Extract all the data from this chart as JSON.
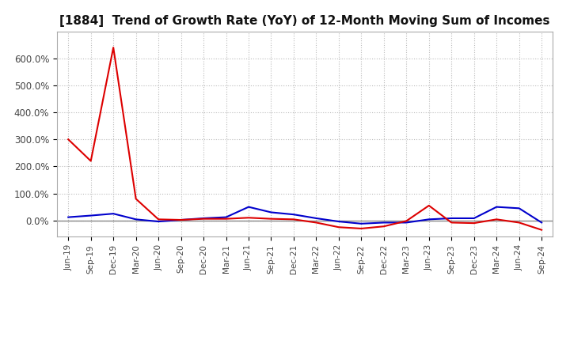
{
  "title": "[1884]  Trend of Growth Rate (YoY) of 12-Month Moving Sum of Incomes",
  "title_fontsize": 11,
  "ylim": [
    -0.6,
    7.0
  ],
  "yticks": [
    0.0,
    1.0,
    2.0,
    3.0,
    4.0,
    5.0,
    6.0
  ],
  "ytick_labels": [
    "0.0%",
    "100.0%",
    "200.0%",
    "300.0%",
    "400.0%",
    "500.0%",
    "600.0%"
  ],
  "x_labels": [
    "Jun-19",
    "Sep-19",
    "Dec-19",
    "Mar-20",
    "Jun-20",
    "Sep-20",
    "Dec-20",
    "Mar-21",
    "Jun-21",
    "Sep-21",
    "Dec-21",
    "Mar-22",
    "Jun-22",
    "Sep-22",
    "Dec-22",
    "Mar-23",
    "Jun-23",
    "Sep-23",
    "Dec-23",
    "Mar-24",
    "Jun-24",
    "Sep-24"
  ],
  "ordinary_income": [
    0.12,
    0.18,
    0.25,
    0.04,
    -0.04,
    0.02,
    0.08,
    0.12,
    0.5,
    0.3,
    0.22,
    0.08,
    -0.04,
    -0.12,
    -0.08,
    -0.08,
    0.04,
    0.08,
    0.08,
    0.5,
    0.45,
    -0.08
  ],
  "net_income": [
    3.0,
    2.2,
    6.4,
    0.8,
    0.04,
    0.02,
    0.06,
    0.06,
    0.1,
    0.06,
    0.04,
    -0.08,
    -0.25,
    -0.3,
    -0.22,
    -0.02,
    0.55,
    -0.08,
    -0.1,
    0.04,
    -0.08,
    -0.35
  ],
  "line_color_ordinary": "#0000cc",
  "line_color_net": "#dd0000",
  "bg_color": "#ffffff",
  "grid_color": "#bbbbbb",
  "zero_line_color": "#888888"
}
